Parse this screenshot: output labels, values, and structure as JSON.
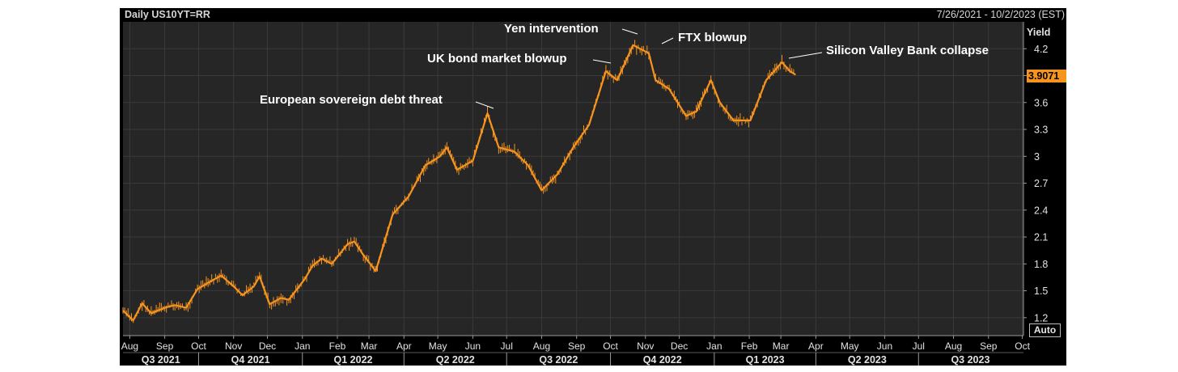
{
  "header": {
    "left": "Daily US10YT=RR",
    "right": "7/26/2021 - 10/2/2023 (EST)"
  },
  "axis": {
    "y_title": "Yield",
    "auto_label": "Auto"
  },
  "last_value_label": "3.9071",
  "colors": {
    "background": "#000000",
    "plot": "#262626",
    "series": "#f7941d",
    "grid": "#3a3a3a",
    "text": "#e2e2e2",
    "annotation": "#ffffff"
  },
  "chart_data": {
    "type": "line",
    "title": "Daily US10YT=RR",
    "date_range": "7/26/2021 - 10/2/2023 (EST)",
    "ylabel": "Yield",
    "ylim": [
      1.0,
      4.5
    ],
    "xlim": [
      "2021-07-26",
      "2023-10-02"
    ],
    "y_ticks": [
      1.2,
      1.5,
      1.8,
      2.1,
      2.4,
      2.7,
      3,
      3.3,
      3.6,
      3.9,
      4.2
    ],
    "y_tick_labels": [
      "1.2",
      "1.5",
      "1.8",
      "2.1",
      "2.4",
      "2.7",
      "3",
      "3.3",
      "3.6",
      "",
      "4.2"
    ],
    "last_value": 3.9071,
    "grid": true,
    "month_ticks": [
      {
        "label": "Aug",
        "date": "2021-08-01"
      },
      {
        "label": "Sep",
        "date": "2021-09-01"
      },
      {
        "label": "Oct",
        "date": "2021-10-01"
      },
      {
        "label": "Nov",
        "date": "2021-11-01"
      },
      {
        "label": "Dec",
        "date": "2021-12-01"
      },
      {
        "label": "Jan",
        "date": "2022-01-01"
      },
      {
        "label": "Feb",
        "date": "2022-02-01"
      },
      {
        "label": "Mar",
        "date": "2022-03-01"
      },
      {
        "label": "Apr",
        "date": "2022-04-01"
      },
      {
        "label": "May",
        "date": "2022-05-01"
      },
      {
        "label": "Jun",
        "date": "2022-06-01"
      },
      {
        "label": "Jul",
        "date": "2022-07-01"
      },
      {
        "label": "Aug",
        "date": "2022-08-01"
      },
      {
        "label": "Sep",
        "date": "2022-09-01"
      },
      {
        "label": "Oct",
        "date": "2022-10-01"
      },
      {
        "label": "Nov",
        "date": "2022-11-01"
      },
      {
        "label": "Dec",
        "date": "2022-12-01"
      },
      {
        "label": "Jan",
        "date": "2023-01-01"
      },
      {
        "label": "Feb",
        "date": "2023-02-01"
      },
      {
        "label": "Mar",
        "date": "2023-03-01"
      },
      {
        "label": "Apr",
        "date": "2023-04-01"
      },
      {
        "label": "May",
        "date": "2023-05-01"
      },
      {
        "label": "Jun",
        "date": "2023-06-01"
      },
      {
        "label": "Jul",
        "date": "2023-07-01"
      },
      {
        "label": "Aug",
        "date": "2023-08-01"
      },
      {
        "label": "Sep",
        "date": "2023-09-01"
      },
      {
        "label": "Oct",
        "date": "2023-10-01"
      }
    ],
    "quarter_ticks": [
      {
        "label": "Q3 2021",
        "start": "2021-07-26",
        "end": "2021-10-01"
      },
      {
        "label": "Q4 2021",
        "start": "2021-10-01",
        "end": "2022-01-01"
      },
      {
        "label": "Q1 2022",
        "start": "2022-01-01",
        "end": "2022-04-01"
      },
      {
        "label": "Q2 2022",
        "start": "2022-04-01",
        "end": "2022-07-01"
      },
      {
        "label": "Q3 2022",
        "start": "2022-07-01",
        "end": "2022-10-01"
      },
      {
        "label": "Q4 2022",
        "start": "2022-10-01",
        "end": "2023-01-01"
      },
      {
        "label": "Q1 2023",
        "start": "2023-01-01",
        "end": "2023-04-01"
      },
      {
        "label": "Q2 2023",
        "start": "2023-04-01",
        "end": "2023-07-01"
      },
      {
        "label": "Q3 2023",
        "start": "2023-07-01",
        "end": "2023-10-01"
      }
    ],
    "series": [
      {
        "points": [
          [
            "2021-07-26",
            1.28
          ],
          [
            "2021-08-04",
            1.17
          ],
          [
            "2021-08-12",
            1.36
          ],
          [
            "2021-08-20",
            1.25
          ],
          [
            "2021-09-01",
            1.31
          ],
          [
            "2021-09-10",
            1.34
          ],
          [
            "2021-09-20",
            1.31
          ],
          [
            "2021-09-30",
            1.52
          ],
          [
            "2021-10-11",
            1.6
          ],
          [
            "2021-10-21",
            1.67
          ],
          [
            "2021-11-01",
            1.55
          ],
          [
            "2021-11-09",
            1.45
          ],
          [
            "2021-11-19",
            1.55
          ],
          [
            "2021-11-24",
            1.66
          ],
          [
            "2021-12-03",
            1.35
          ],
          [
            "2021-12-13",
            1.42
          ],
          [
            "2021-12-20",
            1.4
          ],
          [
            "2022-01-03",
            1.63
          ],
          [
            "2022-01-10",
            1.78
          ],
          [
            "2022-01-18",
            1.86
          ],
          [
            "2022-01-27",
            1.8
          ],
          [
            "2022-02-10",
            2.02
          ],
          [
            "2022-02-16",
            2.05
          ],
          [
            "2022-02-24",
            1.9
          ],
          [
            "2022-03-07",
            1.72
          ],
          [
            "2022-03-22",
            2.35
          ],
          [
            "2022-04-05",
            2.55
          ],
          [
            "2022-04-20",
            2.9
          ],
          [
            "2022-05-03",
            3.0
          ],
          [
            "2022-05-09",
            3.1
          ],
          [
            "2022-05-18",
            2.85
          ],
          [
            "2022-06-01",
            2.95
          ],
          [
            "2022-06-14",
            3.48
          ],
          [
            "2022-06-24",
            3.1
          ],
          [
            "2022-07-08",
            3.05
          ],
          [
            "2022-07-20",
            2.9
          ],
          [
            "2022-08-01",
            2.62
          ],
          [
            "2022-08-15",
            2.8
          ],
          [
            "2022-08-29",
            3.1
          ],
          [
            "2022-09-12",
            3.35
          ],
          [
            "2022-09-27",
            3.95
          ],
          [
            "2022-10-07",
            3.85
          ],
          [
            "2022-10-21",
            4.24
          ],
          [
            "2022-11-04",
            4.15
          ],
          [
            "2022-11-10",
            3.85
          ],
          [
            "2022-11-22",
            3.75
          ],
          [
            "2022-12-07",
            3.45
          ],
          [
            "2022-12-16",
            3.5
          ],
          [
            "2022-12-29",
            3.85
          ],
          [
            "2023-01-06",
            3.6
          ],
          [
            "2023-01-18",
            3.4
          ],
          [
            "2023-02-02",
            3.4
          ],
          [
            "2023-02-16",
            3.85
          ],
          [
            "2023-03-02",
            4.05
          ],
          [
            "2023-03-09",
            3.95
          ],
          [
            "2023-03-14",
            3.91
          ]
        ]
      }
    ],
    "annotations": [
      {
        "text": "European sovereign debt threat",
        "date": "2022-06-14"
      },
      {
        "text": "UK bond market blowup",
        "date": "2022-09-27"
      },
      {
        "text": "Yen intervention",
        "date": "2022-10-21"
      },
      {
        "text": "FTX blowup",
        "date": "2022-11-04"
      },
      {
        "text": "Silicon Valley Bank collapse",
        "date": "2023-03-02"
      }
    ]
  }
}
